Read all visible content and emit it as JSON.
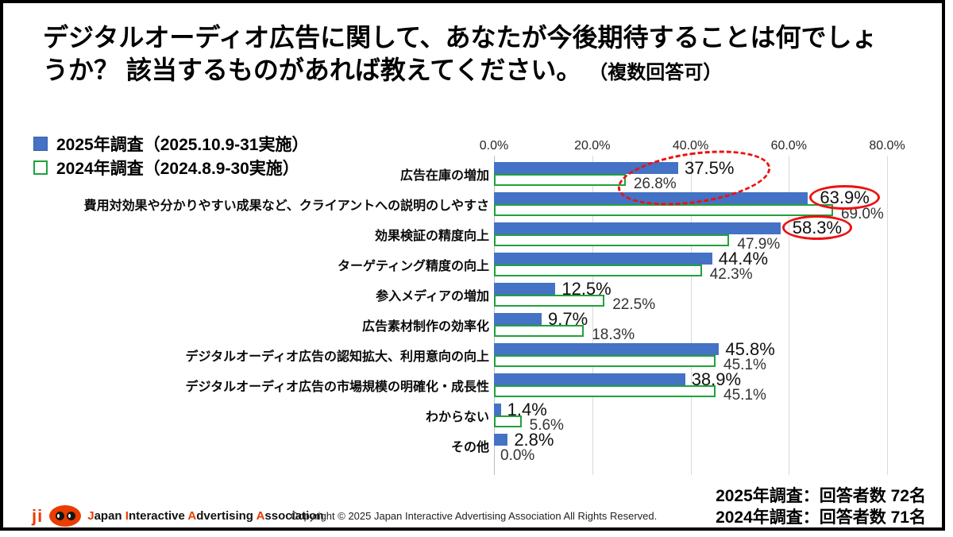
{
  "title": {
    "line1": "デジタルオーディオ広告に関して、あなたが今後期待することは何でしょ",
    "line2": "うか？ 該当するものがあれば教えてください。",
    "note": "（複数回答可）"
  },
  "legend": [
    {
      "label": "2025年調査（2025.10.9-31実施）",
      "swatch": "blue-filled-square"
    },
    {
      "label": "2024年調査（2024.8.9-30実施）",
      "swatch": "green-outline-square"
    }
  ],
  "colors": {
    "bar_2025": "#4472C4",
    "bar_2024_border": "#1FA23C",
    "annotation_red": "#ED1111",
    "gridline": "#D9D9D9"
  },
  "chart_data": {
    "type": "bar",
    "orientation": "horizontal",
    "categories": [
      "広告在庫の増加",
      "費用対効果や分かりやすい成果など、クライアントへの説明のしやすさ",
      "効果検証の精度向上",
      "ターゲティング精度の向上",
      "参入メディアの増加",
      "広告素材制作の効率化",
      "デジタルオーディオ広告の認知拡大、利用意向の向上",
      "デジタルオーディオ広告の市場規模の明確化・成長性",
      "わからない",
      "その他"
    ],
    "series": [
      {
        "name": "2025年調査",
        "values": [
          37.5,
          63.9,
          58.3,
          44.4,
          12.5,
          9.7,
          45.8,
          38.9,
          1.4,
          2.8
        ]
      },
      {
        "name": "2024年調査",
        "values": [
          26.8,
          69.0,
          47.9,
          42.3,
          22.5,
          18.3,
          45.1,
          45.1,
          5.6,
          0.0
        ]
      }
    ],
    "xlim": [
      0,
      80
    ],
    "x_ticks": [
      "0.0%",
      "20.0%",
      "40.0%",
      "60.0%",
      "80.0%"
    ],
    "value_suffix": "%",
    "grid": true,
    "legend_position": "top-left",
    "annotations": {
      "dashed_ellipse": {
        "row": 0,
        "note": "dashed red ellipse around 37.5% and 26.8%"
      },
      "solid_circles": {
        "rows": [
          1,
          2
        ],
        "note": "solid red ellipses around 63.9% and 58.3%"
      }
    }
  },
  "footer": {
    "respondents": [
      "2025年調査：回答者数 72名",
      "2024年調査：回答者数 71名"
    ],
    "logo_ji": "ji",
    "logo_words": [
      "Japan",
      "Interactive",
      "Advertising",
      "Association"
    ],
    "copyright": "Copyright © 2025 Japan Interactive Advertising Association All Rights Reserved."
  }
}
